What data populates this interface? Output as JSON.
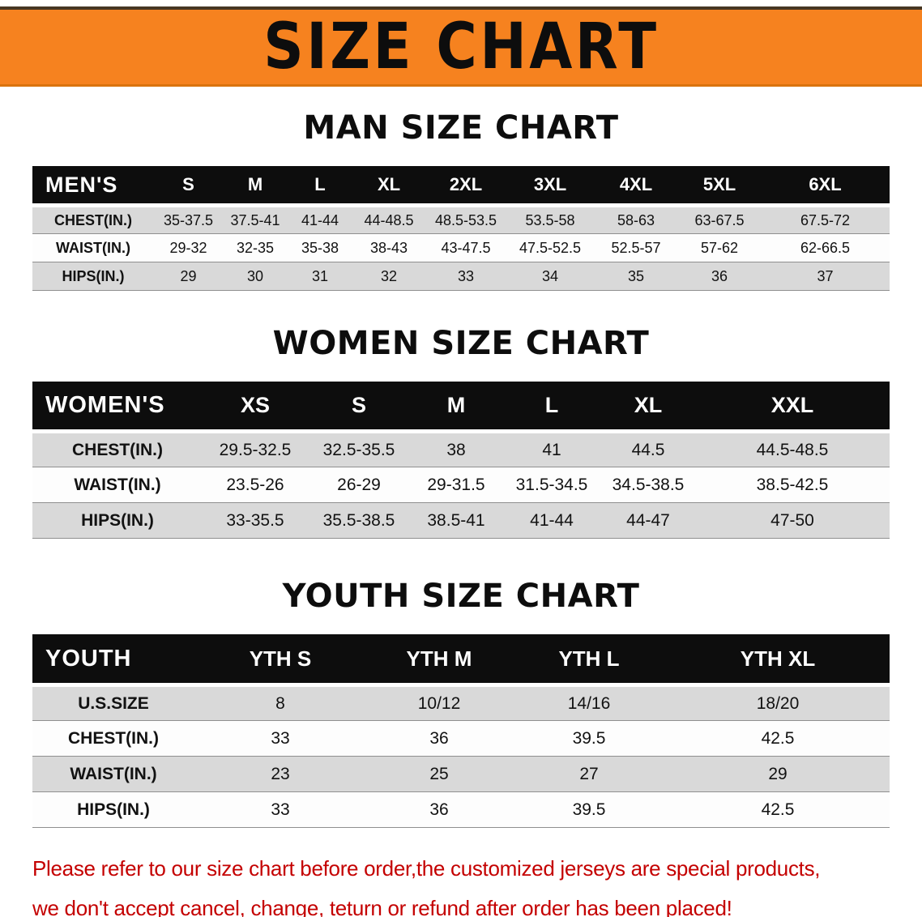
{
  "banner": {
    "title": "SIZE CHART"
  },
  "sections": [
    {
      "id": "men",
      "heading": "MAN SIZE CHART",
      "table": {
        "header": [
          "MEN'S",
          "S",
          "M",
          "L",
          "XL",
          "2XL",
          "3XL",
          "4XL",
          "5XL",
          "6XL"
        ],
        "rows": [
          {
            "label": "CHEST(IN.)",
            "values": [
              "35-37.5",
              "37.5-41",
              "41-44",
              "44-48.5",
              "48.5-53.5",
              "53.5-58",
              "58-63",
              "63-67.5",
              "67.5-72"
            ]
          },
          {
            "label": "WAIST(IN.)",
            "values": [
              "29-32",
              "32-35",
              "35-38",
              "38-43",
              "43-47.5",
              "47.5-52.5",
              "52.5-57",
              "57-62",
              "62-66.5"
            ]
          },
          {
            "label": "HIPS(IN.)",
            "values": [
              "29",
              "30",
              "31",
              "32",
              "33",
              "34",
              "35",
              "36",
              "37"
            ]
          }
        ]
      }
    },
    {
      "id": "women",
      "heading": "WOMEN SIZE CHART",
      "table": {
        "header": [
          "WOMEN'S",
          "XS",
          "S",
          "M",
          "L",
          "XL",
          "XXL"
        ],
        "rows": [
          {
            "label": "CHEST(IN.)",
            "values": [
              "29.5-32.5",
              "32.5-35.5",
              "38",
              "41",
              "44.5",
              "44.5-48.5"
            ]
          },
          {
            "label": "WAIST(IN.)",
            "values": [
              "23.5-26",
              "26-29",
              "29-31.5",
              "31.5-34.5",
              "34.5-38.5",
              "38.5-42.5"
            ]
          },
          {
            "label": "HIPS(IN.)",
            "values": [
              "33-35.5",
              "35.5-38.5",
              "38.5-41",
              "41-44",
              "44-47",
              "47-50"
            ]
          }
        ]
      }
    },
    {
      "id": "youth",
      "heading": "YOUTH SIZE CHART",
      "table": {
        "header": [
          "YOUTH",
          "YTH S",
          "YTH M",
          "YTH L",
          "YTH XL"
        ],
        "rows": [
          {
            "label": "U.S.SIZE",
            "values": [
              "8",
              "10/12",
              "14/16",
              "18/20"
            ]
          },
          {
            "label": "CHEST(IN.)",
            "values": [
              "33",
              "36",
              "39.5",
              "42.5"
            ]
          },
          {
            "label": "WAIST(IN.)",
            "values": [
              "23",
              "25",
              "27",
              "29"
            ]
          },
          {
            "label": "HIPS(IN.)",
            "values": [
              "33",
              "36",
              "39.5",
              "42.5"
            ]
          }
        ]
      }
    }
  ],
  "footer": {
    "lines": [
      "Please refer to our size chart before order,the customized jerseys are special products,",
      "we don't accept cancel, change, teturn or refund after order has been placed!"
    ]
  },
  "colors": {
    "banner_bg": "#F6821F",
    "table_header_bg": "#0D0D0D",
    "row_alt_bg": "#D9D9D9",
    "disclaimer_text": "#C40000"
  }
}
